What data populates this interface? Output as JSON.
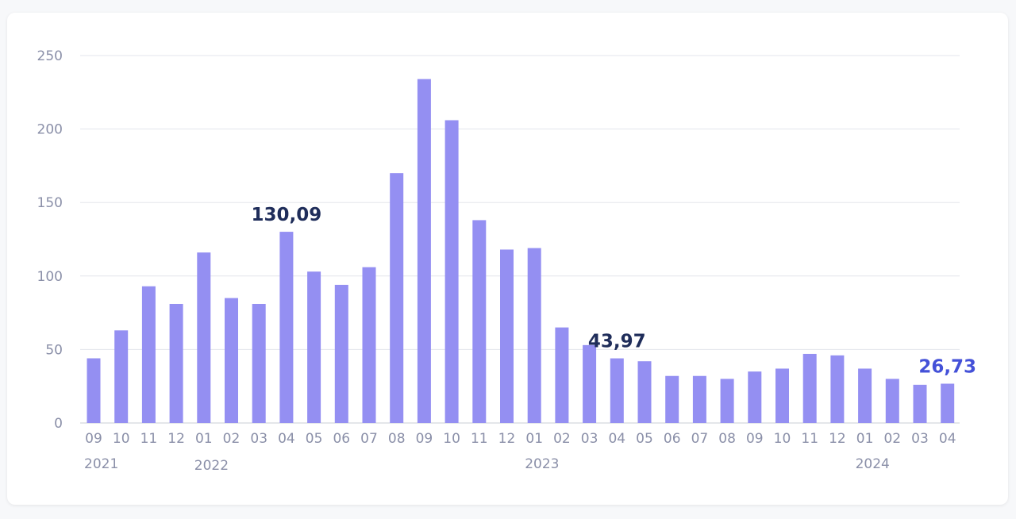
{
  "chart_data": {
    "type": "bar",
    "categories": [
      "09",
      "10",
      "11",
      "12",
      "01",
      "02",
      "03",
      "04",
      "05",
      "06",
      "07",
      "08",
      "09",
      "10",
      "11",
      "12",
      "01",
      "02",
      "03",
      "04",
      "05",
      "06",
      "07",
      "08",
      "09",
      "10",
      "11",
      "12",
      "01",
      "02",
      "03",
      "04"
    ],
    "values": [
      44,
      63,
      93,
      81,
      116,
      85,
      81,
      130.09,
      103,
      94,
      106,
      170,
      234,
      206,
      138,
      118,
      119,
      65,
      53,
      43.97,
      42,
      32,
      32,
      30,
      35,
      37,
      47,
      46,
      37,
      30,
      26,
      26.73
    ],
    "years": [
      {
        "label": "2021",
        "index": 0
      },
      {
        "label": "2022",
        "index": 4
      },
      {
        "label": "2023",
        "index": 16
      },
      {
        "label": "2024",
        "index": 28
      }
    ],
    "annotations": [
      {
        "index": 7,
        "text": "130,09",
        "color": "#1f2d5a"
      },
      {
        "index": 19,
        "text": "43,97",
        "color": "#1f2d5a"
      },
      {
        "index": 31,
        "text": "26,73",
        "color": "#4451d8"
      }
    ],
    "yticks": [
      0,
      50,
      100,
      150,
      200,
      250
    ],
    "ylim": [
      0,
      250
    ],
    "grid": true,
    "bar_color": "#948ff2",
    "title": "",
    "xlabel": "",
    "ylabel": ""
  }
}
